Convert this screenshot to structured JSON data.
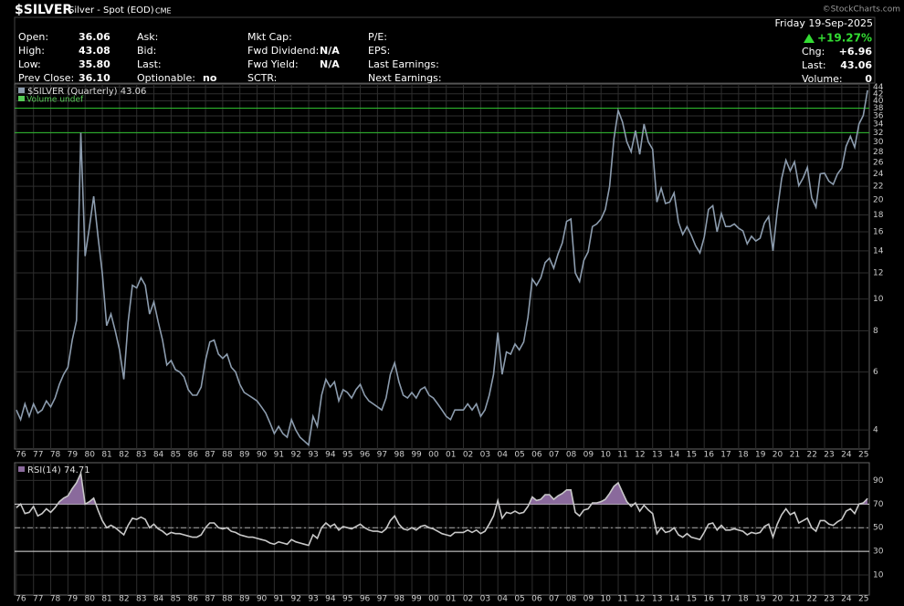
{
  "header": {
    "symbol": "$SILVER",
    "name": "Silver - Spot (EOD)",
    "exchange": "CME",
    "copyright": "©StockCharts.com",
    "date": "Friday 19-Sep-2025",
    "pct_change": "+19.27%",
    "columns": [
      [
        {
          "label": "Open:",
          "value": "36.06"
        },
        {
          "label": "High:",
          "value": "43.08"
        },
        {
          "label": "Low:",
          "value": "35.80"
        },
        {
          "label": "Prev Close:",
          "value": "36.10"
        }
      ],
      [
        {
          "label": "Ask:"
        },
        {
          "label": "Bid:"
        },
        {
          "label": "Last:"
        },
        {
          "label": "Optionable:",
          "value": "no"
        }
      ],
      [
        {
          "label": "Mkt Cap:"
        },
        {
          "label": "Fwd Dividend:",
          "value": "N/A"
        },
        {
          "label": "Fwd Yield:",
          "value": "N/A"
        },
        {
          "label": "SCTR:"
        }
      ],
      [
        {
          "label": "P/E:"
        },
        {
          "label": "EPS:"
        },
        {
          "label": "Last Earnings:"
        },
        {
          "label": "Next Earnings:"
        }
      ],
      [
        {
          "label": "Chg:",
          "value": "+6.96"
        },
        {
          "label": "Last:",
          "value": "43.06"
        },
        {
          "label": "Volume:",
          "value": "0"
        }
      ]
    ]
  },
  "chart_data": [
    {
      "type": "line",
      "log_scale": true,
      "grid": true,
      "volume_label": "Volume undef",
      "x": [
        1976,
        1976.25,
        1976.5,
        1976.75,
        1977,
        1977.25,
        1977.5,
        1977.75,
        1978,
        1978.25,
        1978.5,
        1978.75,
        1979,
        1979.25,
        1979.5,
        1979.75,
        1980,
        1980.25,
        1980.5,
        1980.75,
        1981,
        1981.25,
        1981.5,
        1981.75,
        1982,
        1982.25,
        1982.5,
        1982.75,
        1983,
        1983.25,
        1983.5,
        1983.75,
        1984,
        1984.25,
        1984.5,
        1984.75,
        1985,
        1985.25,
        1985.5,
        1985.75,
        1986,
        1986.25,
        1986.5,
        1986.75,
        1987,
        1987.25,
        1987.5,
        1987.75,
        1988,
        1988.25,
        1988.5,
        1988.75,
        1989,
        1989.25,
        1989.5,
        1989.75,
        1990,
        1990.25,
        1990.5,
        1990.75,
        1991,
        1991.25,
        1991.5,
        1991.75,
        1992,
        1992.25,
        1992.5,
        1992.75,
        1993,
        1993.25,
        1993.5,
        1993.75,
        1994,
        1994.25,
        1994.5,
        1994.75,
        1995,
        1995.25,
        1995.5,
        1995.75,
        1996,
        1996.25,
        1996.5,
        1996.75,
        1997,
        1997.25,
        1997.5,
        1997.75,
        1998,
        1998.25,
        1998.5,
        1998.75,
        1999,
        1999.25,
        1999.5,
        1999.75,
        2000,
        2000.25,
        2000.5,
        2000.75,
        2001,
        2001.25,
        2001.5,
        2001.75,
        2002,
        2002.25,
        2002.5,
        2002.75,
        2003,
        2003.25,
        2003.5,
        2003.75,
        2004,
        2004.25,
        2004.5,
        2004.75,
        2005,
        2005.25,
        2005.5,
        2005.75,
        2006,
        2006.25,
        2006.5,
        2006.75,
        2007,
        2007.25,
        2007.5,
        2007.75,
        2008,
        2008.25,
        2008.5,
        2008.75,
        2009,
        2009.25,
        2009.5,
        2009.75,
        2010,
        2010.25,
        2010.5,
        2010.75,
        2011,
        2011.25,
        2011.5,
        2011.75,
        2012,
        2012.25,
        2012.5,
        2012.75,
        2013,
        2013.25,
        2013.5,
        2013.75,
        2014,
        2014.25,
        2014.5,
        2014.75,
        2015,
        2015.25,
        2015.5,
        2015.75,
        2016,
        2016.25,
        2016.5,
        2016.75,
        2017,
        2017.25,
        2017.5,
        2017.75,
        2018,
        2018.25,
        2018.5,
        2018.75,
        2019,
        2019.25,
        2019.5,
        2019.75,
        2020,
        2020.25,
        2020.5,
        2020.75,
        2021,
        2021.25,
        2021.5,
        2021.75,
        2022,
        2022.25,
        2022.5,
        2022.75,
        2023,
        2023.25,
        2023.5,
        2023.75,
        2024,
        2024.25,
        2024.5,
        2024.75,
        2025,
        2025.25,
        2025.5
      ],
      "series": [
        {
          "name": "$SILVER (Quarterly) 43.06",
          "color": "#8c9cae",
          "values": [
            4.6,
            4.3,
            4.8,
            4.4,
            4.8,
            4.5,
            4.6,
            4.9,
            4.7,
            5.0,
            5.5,
            5.9,
            6.2,
            7.5,
            8.6,
            32.0,
            13.5,
            16.5,
            20.5,
            15.5,
            12.0,
            8.3,
            9.0,
            8.0,
            7.0,
            5.7,
            8.5,
            11.0,
            10.8,
            11.6,
            11.0,
            9.0,
            9.8,
            8.5,
            7.5,
            6.3,
            6.5,
            6.1,
            6.0,
            5.8,
            5.3,
            5.1,
            5.1,
            5.4,
            6.5,
            7.4,
            7.5,
            6.8,
            6.6,
            6.8,
            6.2,
            6.0,
            5.5,
            5.2,
            5.1,
            5.0,
            4.9,
            4.7,
            4.5,
            4.2,
            3.9,
            4.1,
            3.9,
            3.8,
            4.3,
            4.0,
            3.8,
            3.7,
            3.6,
            4.4,
            4.1,
            5.1,
            5.7,
            5.4,
            5.6,
            4.9,
            5.3,
            5.2,
            5.0,
            5.3,
            5.5,
            5.1,
            4.9,
            4.8,
            4.7,
            4.6,
            5.0,
            5.9,
            6.4,
            5.6,
            5.1,
            5.0,
            5.2,
            5.0,
            5.3,
            5.4,
            5.1,
            5.0,
            4.8,
            4.6,
            4.4,
            4.3,
            4.6,
            4.6,
            4.6,
            4.8,
            4.6,
            4.8,
            4.4,
            4.6,
            5.1,
            5.9,
            7.9,
            5.9,
            6.9,
            6.8,
            7.3,
            7.0,
            7.4,
            8.8,
            11.5,
            11.0,
            11.6,
            12.9,
            13.3,
            12.4,
            13.7,
            14.8,
            17.2,
            17.5,
            12.0,
            11.3,
            13.1,
            13.9,
            16.6,
            16.9,
            17.5,
            18.7,
            22.0,
            30.6,
            37.4,
            34.5,
            30.0,
            28.0,
            32.5,
            27.5,
            34.0,
            30.0,
            28.5,
            19.7,
            21.7,
            19.5,
            19.7,
            21.0,
            17.1,
            15.7,
            16.6,
            15.6,
            14.5,
            13.8,
            15.4,
            18.7,
            19.2,
            16.0,
            18.2,
            16.6,
            16.6,
            16.9,
            16.4,
            16.1,
            14.7,
            15.5,
            15.0,
            15.3,
            17.0,
            17.8,
            14.0,
            18.5,
            23.2,
            26.4,
            24.5,
            26.1,
            22.1,
            23.3,
            25.1,
            20.3,
            19.0,
            24.0,
            24.1,
            22.8,
            22.3,
            24.0,
            25.0,
            29.1,
            31.2,
            28.9,
            34.0,
            36.1,
            43.06
          ]
        }
      ],
      "hlines": [
        {
          "value": 38,
          "color": "#2fbf2f"
        },
        {
          "value": 32,
          "color": "#2fbf2f"
        }
      ],
      "xlim": [
        1975.9,
        2025.6
      ],
      "xticks": [
        {
          "value": 1976,
          "label": "76"
        },
        {
          "value": 1977,
          "label": "77"
        },
        {
          "value": 1978,
          "label": "78"
        },
        {
          "value": 1979,
          "label": "79"
        },
        {
          "value": 1980,
          "label": "80"
        },
        {
          "value": 1981,
          "label": "81"
        },
        {
          "value": 1982,
          "label": "82"
        },
        {
          "value": 1983,
          "label": "83"
        },
        {
          "value": 1984,
          "label": "84"
        },
        {
          "value": 1985,
          "label": "85"
        },
        {
          "value": 1986,
          "label": "86"
        },
        {
          "value": 1987,
          "label": "87"
        },
        {
          "value": 1988,
          "label": "88"
        },
        {
          "value": 1989,
          "label": "89"
        },
        {
          "value": 1990,
          "label": "90"
        },
        {
          "value": 1991,
          "label": "91"
        },
        {
          "value": 1992,
          "label": "92"
        },
        {
          "value": 1993,
          "label": "93"
        },
        {
          "value": 1994,
          "label": "94"
        },
        {
          "value": 1995,
          "label": "95"
        },
        {
          "value": 1996,
          "label": "96"
        },
        {
          "value": 1997,
          "label": "97"
        },
        {
          "value": 1998,
          "label": "98"
        },
        {
          "value": 1999,
          "label": "99"
        },
        {
          "value": 2000,
          "label": "00"
        },
        {
          "value": 2001,
          "label": "01"
        },
        {
          "value": 2002,
          "label": "02"
        },
        {
          "value": 2003,
          "label": "03"
        },
        {
          "value": 2004,
          "label": "04"
        },
        {
          "value": 2005,
          "label": "05"
        },
        {
          "value": 2006,
          "label": "06"
        },
        {
          "value": 2007,
          "label": "07"
        },
        {
          "value": 2008,
          "label": "08"
        },
        {
          "value": 2009,
          "label": "09"
        },
        {
          "value": 2010,
          "label": "10"
        },
        {
          "value": 2011,
          "label": "11"
        },
        {
          "value": 2012,
          "label": "12"
        },
        {
          "value": 2013,
          "label": "13"
        },
        {
          "value": 2014,
          "label": "14"
        },
        {
          "value": 2015,
          "label": "15"
        },
        {
          "value": 2016,
          "label": "16"
        },
        {
          "value": 2017,
          "label": "17"
        },
        {
          "value": 2018,
          "label": "18"
        },
        {
          "value": 2019,
          "label": "19"
        },
        {
          "value": 2020,
          "label": "20"
        },
        {
          "value": 2021,
          "label": "21"
        },
        {
          "value": 2022,
          "label": "22"
        },
        {
          "value": 2023,
          "label": "23"
        },
        {
          "value": 2024,
          "label": "24"
        },
        {
          "value": 2025,
          "label": "25"
        }
      ],
      "ylim": [
        3.5,
        45
      ],
      "yticks": [
        4,
        6,
        8,
        10,
        12,
        14,
        16,
        18,
        20,
        22,
        24,
        26,
        28,
        30,
        32,
        34,
        36,
        38,
        40,
        42,
        44
      ]
    },
    {
      "type": "line",
      "grid": true,
      "series": [
        {
          "name": "RSI(14) 74.71",
          "color": "#c8c8c8",
          "fill": "#8a6a9c",
          "values": [
            67,
            70,
            62,
            63,
            68,
            60,
            62,
            66,
            63,
            67,
            72,
            75,
            77,
            83,
            88,
            96,
            70,
            72,
            75,
            65,
            56,
            50,
            52,
            50,
            47,
            44,
            52,
            58,
            57,
            59,
            57,
            50,
            53,
            49,
            47,
            44,
            46,
            45,
            45,
            44,
            43,
            42,
            42,
            44,
            50,
            54,
            54,
            50,
            49,
            50,
            47,
            46,
            44,
            43,
            42,
            42,
            41,
            40,
            39,
            37,
            36,
            38,
            37,
            36,
            40,
            38,
            37,
            36,
            35,
            44,
            41,
            50,
            54,
            51,
            53,
            48,
            51,
            50,
            49,
            51,
            53,
            50,
            48,
            47,
            47,
            46,
            49,
            56,
            60,
            53,
            49,
            48,
            50,
            48,
            51,
            52,
            50,
            49,
            47,
            45,
            44,
            43,
            46,
            46,
            46,
            48,
            46,
            48,
            45,
            47,
            53,
            60,
            73,
            58,
            63,
            62,
            64,
            62,
            63,
            68,
            76,
            73,
            74,
            78,
            78,
            74,
            77,
            79,
            82,
            82,
            63,
            60,
            65,
            66,
            71,
            71,
            72,
            74,
            79,
            85,
            88,
            80,
            72,
            68,
            71,
            64,
            69,
            65,
            62,
            45,
            50,
            46,
            47,
            50,
            44,
            42,
            45,
            42,
            41,
            40,
            46,
            53,
            54,
            48,
            52,
            48,
            48,
            49,
            48,
            47,
            44,
            46,
            45,
            46,
            51,
            53,
            42,
            53,
            61,
            66,
            61,
            63,
            54,
            56,
            58,
            50,
            47,
            56,
            56,
            53,
            52,
            55,
            57,
            64,
            66,
            62,
            70,
            71,
            74.71
          ]
        }
      ],
      "hlines": [
        {
          "value": 70,
          "style": "solid"
        },
        {
          "value": 50,
          "style": "dashdot"
        },
        {
          "value": 30,
          "style": "solid"
        }
      ],
      "ylim": [
        -7,
        105
      ],
      "yticks": [
        10,
        30,
        50,
        70,
        90
      ]
    }
  ]
}
